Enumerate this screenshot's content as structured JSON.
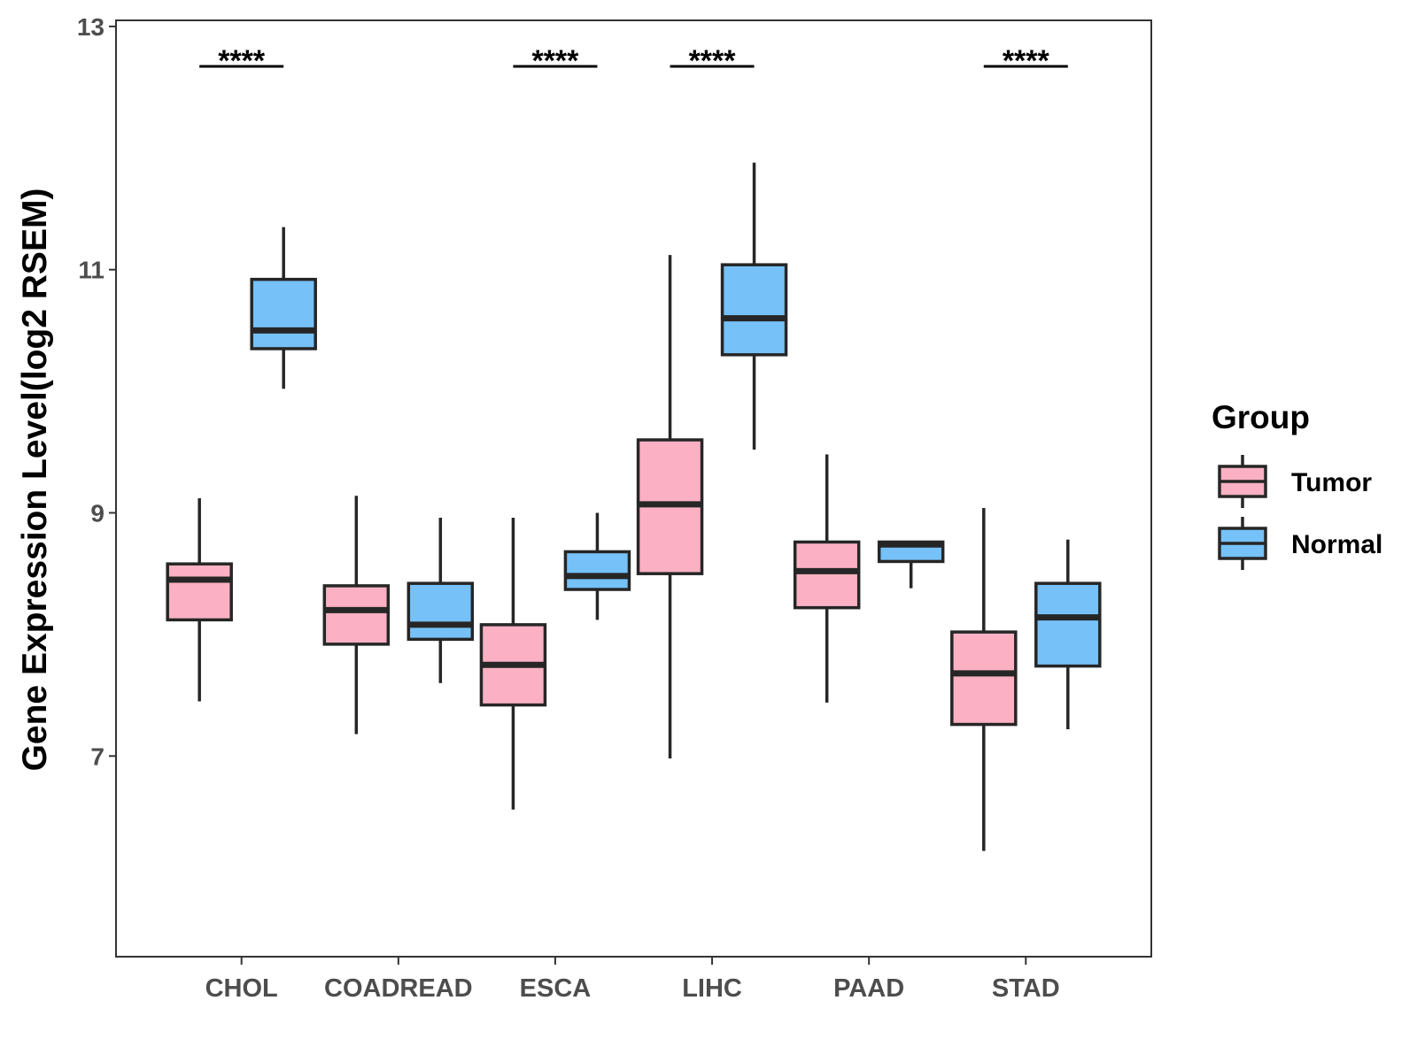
{
  "chart_data": {
    "type": "boxplot",
    "ylabel": "Gene Expression Level(log2 RSEM)",
    "xlabel": "",
    "ylim": [
      5.35,
      13.05
    ],
    "yticks": [
      7,
      9,
      11,
      13
    ],
    "categories": [
      "CHOL",
      "COADREAD",
      "ESCA",
      "LIHC",
      "PAAD",
      "STAD"
    ],
    "significance": [
      "****",
      "",
      "****",
      "****",
      "",
      "****"
    ],
    "legend": {
      "title": "Group",
      "position": "right",
      "entries": [
        {
          "name": "Tumor",
          "color": "#FBB1C3"
        },
        {
          "name": "Normal",
          "color": "#76C1F8"
        }
      ]
    },
    "series": [
      {
        "name": "Tumor",
        "color": "#FBB1C3",
        "boxes": [
          {
            "min": 7.45,
            "q1": 8.12,
            "median": 8.45,
            "q3": 8.58,
            "max": 9.12
          },
          {
            "min": 7.18,
            "q1": 7.92,
            "median": 8.2,
            "q3": 8.4,
            "max": 9.14
          },
          {
            "min": 6.56,
            "q1": 7.42,
            "median": 7.75,
            "q3": 8.08,
            "max": 8.96
          },
          {
            "min": 6.98,
            "q1": 8.5,
            "median": 9.07,
            "q3": 9.6,
            "max": 11.12
          },
          {
            "min": 7.44,
            "q1": 8.22,
            "median": 8.52,
            "q3": 8.76,
            "max": 9.48
          },
          {
            "min": 6.22,
            "q1": 7.26,
            "median": 7.68,
            "q3": 8.02,
            "max": 9.04
          }
        ]
      },
      {
        "name": "Normal",
        "color": "#76C1F8",
        "boxes": [
          {
            "min": 10.02,
            "q1": 10.35,
            "median": 10.5,
            "q3": 10.92,
            "max": 11.35
          },
          {
            "min": 7.6,
            "q1": 7.96,
            "median": 8.08,
            "q3": 8.42,
            "max": 8.96
          },
          {
            "min": 8.12,
            "q1": 8.37,
            "median": 8.48,
            "q3": 8.68,
            "max": 9.0
          },
          {
            "min": 9.52,
            "q1": 10.3,
            "median": 10.6,
            "q3": 11.04,
            "max": 11.88
          },
          {
            "min": 8.38,
            "q1": 8.6,
            "median": 8.74,
            "q3": 8.76,
            "max": 8.76
          },
          {
            "min": 7.22,
            "q1": 7.74,
            "median": 8.14,
            "q3": 8.42,
            "max": 8.78
          }
        ]
      }
    ]
  }
}
